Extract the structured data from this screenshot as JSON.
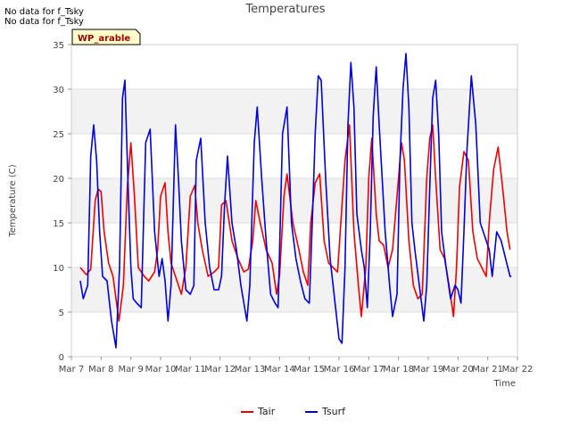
{
  "notes": [
    "No data for f_Tsky",
    "No data for f_Tsky"
  ],
  "chart_data": {
    "type": "line",
    "title": "Temperatures",
    "xlabel": "Time",
    "ylabel": "Temperature (C)",
    "ylim": [
      0,
      35
    ],
    "xlim": [
      0,
      15
    ],
    "yticks": [
      0,
      5,
      10,
      15,
      20,
      25,
      30,
      35
    ],
    "xticks": [
      "Mar 7",
      "Mar 8",
      "Mar 9",
      "Mar 10",
      "Mar 11",
      "Mar 12",
      "Mar 13",
      "Mar 14",
      "Mar 15",
      "Mar 16",
      "Mar 17",
      "Mar 18",
      "Mar 19",
      "Mar 20",
      "Mar 21",
      "Mar 22"
    ],
    "grid": true,
    "background_bands": true,
    "legend_position": "bottom-center",
    "annotation": "WP_arable",
    "series": [
      {
        "name": "Tair",
        "color": "#ee0000",
        "x": [
          0.3,
          0.5,
          0.65,
          0.8,
          0.9,
          1.0,
          1.1,
          1.25,
          1.4,
          1.6,
          1.75,
          1.88,
          2.0,
          2.12,
          2.25,
          2.45,
          2.6,
          2.8,
          2.9,
          3.0,
          3.15,
          3.25,
          3.35,
          3.5,
          3.7,
          3.85,
          4.0,
          4.15,
          4.25,
          4.4,
          4.6,
          4.8,
          4.95,
          5.05,
          5.2,
          5.4,
          5.6,
          5.8,
          5.95,
          6.1,
          6.2,
          6.35,
          6.55,
          6.75,
          6.9,
          7.0,
          7.15,
          7.25,
          7.45,
          7.65,
          7.8,
          7.95,
          8.05,
          8.2,
          8.35,
          8.5,
          8.65,
          8.8,
          8.95,
          9.0,
          9.2,
          9.35,
          9.5,
          9.65,
          9.75,
          9.9,
          10.0,
          10.1,
          10.25,
          10.35,
          10.5,
          10.65,
          10.8,
          10.95,
          11.1,
          11.2,
          11.35,
          11.5,
          11.65,
          11.8,
          11.95,
          12.05,
          12.15,
          12.25,
          12.4,
          12.55,
          12.7,
          12.85,
          12.95,
          13.05,
          13.2,
          13.35,
          13.5,
          13.65,
          13.8,
          13.95,
          14.05,
          14.2,
          14.35,
          14.5,
          14.65,
          14.75
        ],
        "values": [
          10.0,
          9.2,
          9.8,
          17.5,
          18.8,
          18.5,
          14.0,
          10.5,
          9.0,
          4.0,
          8.0,
          19.0,
          24.0,
          18.0,
          10.0,
          9.0,
          8.5,
          9.5,
          12.0,
          18.0,
          19.5,
          14.0,
          10.5,
          9.0,
          7.0,
          10.0,
          18.0,
          19.2,
          15.0,
          12.0,
          9.0,
          9.5,
          10.0,
          17.0,
          17.5,
          13.0,
          11.0,
          9.5,
          9.8,
          13.0,
          17.5,
          15.0,
          12.0,
          10.5,
          7.0,
          9.0,
          18.0,
          20.5,
          15.0,
          12.0,
          9.5,
          8.0,
          15.0,
          19.5,
          20.5,
          13.0,
          10.5,
          10.0,
          9.5,
          12.0,
          22.0,
          26.0,
          14.0,
          8.0,
          4.5,
          10.0,
          20.0,
          24.5,
          16.0,
          13.0,
          12.5,
          10.0,
          12.0,
          18.0,
          24.0,
          22.0,
          13.0,
          8.0,
          6.5,
          7.0,
          20.0,
          24.5,
          26.0,
          20.0,
          12.0,
          11.0,
          8.0,
          4.5,
          10.0,
          19.0,
          23.0,
          22.0,
          14.0,
          11.0,
          10.0,
          9.0,
          15.0,
          21.0,
          23.5,
          19.0,
          14.0,
          12.0
        ]
      },
      {
        "name": "Tsurf",
        "color": "#0000dd",
        "x": [
          0.3,
          0.4,
          0.55,
          0.65,
          0.75,
          0.85,
          0.95,
          1.05,
          1.2,
          1.35,
          1.5,
          1.62,
          1.72,
          1.8,
          1.9,
          2.0,
          2.08,
          2.2,
          2.35,
          2.5,
          2.65,
          2.8,
          2.95,
          3.05,
          3.15,
          3.25,
          3.35,
          3.5,
          3.6,
          3.7,
          3.85,
          4.0,
          4.12,
          4.2,
          4.35,
          4.5,
          4.65,
          4.8,
          4.95,
          5.05,
          5.15,
          5.25,
          5.4,
          5.55,
          5.7,
          5.9,
          6.0,
          6.15,
          6.25,
          6.4,
          6.55,
          6.7,
          6.85,
          6.95,
          7.1,
          7.25,
          7.4,
          7.55,
          7.7,
          7.85,
          8.0,
          8.1,
          8.2,
          8.3,
          8.4,
          8.55,
          8.7,
          8.85,
          9.0,
          9.1,
          9.2,
          9.3,
          9.4,
          9.5,
          9.6,
          9.75,
          9.85,
          9.95,
          10.05,
          10.15,
          10.25,
          10.35,
          10.55,
          10.7,
          10.8,
          10.95,
          11.05,
          11.15,
          11.25,
          11.35,
          11.45,
          11.55,
          11.7,
          11.85,
          11.95,
          12.05,
          12.15,
          12.25,
          12.35,
          12.45,
          12.6,
          12.75,
          12.9,
          13.0,
          13.1,
          13.2,
          13.3,
          13.45,
          13.6,
          13.75,
          13.85,
          13.95,
          14.05,
          14.15,
          14.3,
          14.45,
          14.6,
          14.75,
          14.8
        ],
        "values": [
          8.5,
          6.5,
          8.0,
          22.5,
          26.0,
          22.0,
          14.0,
          9.0,
          8.5,
          4.0,
          1.0,
          10.0,
          29.0,
          31.0,
          20.0,
          10.0,
          6.5,
          6.0,
          5.5,
          24.0,
          25.5,
          14.0,
          9.0,
          11.0,
          8.5,
          4.0,
          8.0,
          26.0,
          20.0,
          13.0,
          7.5,
          7.0,
          8.0,
          22.0,
          24.5,
          15.0,
          10.0,
          7.5,
          7.5,
          9.0,
          17.0,
          22.5,
          15.0,
          12.0,
          8.0,
          4.0,
          8.0,
          24.0,
          28.0,
          20.0,
          13.0,
          7.0,
          6.0,
          5.5,
          25.0,
          28.0,
          15.0,
          11.0,
          8.5,
          6.5,
          6.0,
          15.0,
          25.0,
          31.5,
          31.0,
          20.0,
          11.0,
          6.5,
          2.0,
          1.5,
          10.0,
          26.0,
          33.0,
          28.0,
          16.0,
          12.0,
          10.0,
          5.5,
          14.0,
          27.0,
          32.5,
          26.0,
          14.0,
          8.0,
          4.5,
          7.0,
          22.0,
          30.0,
          34.0,
          28.0,
          15.0,
          12.0,
          8.0,
          4.0,
          8.0,
          19.0,
          29.0,
          31.0,
          25.0,
          14.0,
          10.0,
          6.5,
          8.0,
          7.5,
          6.0,
          14.0,
          23.0,
          31.5,
          26.0,
          15.0,
          14.0,
          13.0,
          12.0,
          9.0,
          14.0,
          13.0,
          11.0,
          9.0,
          9.0
        ]
      }
    ]
  }
}
